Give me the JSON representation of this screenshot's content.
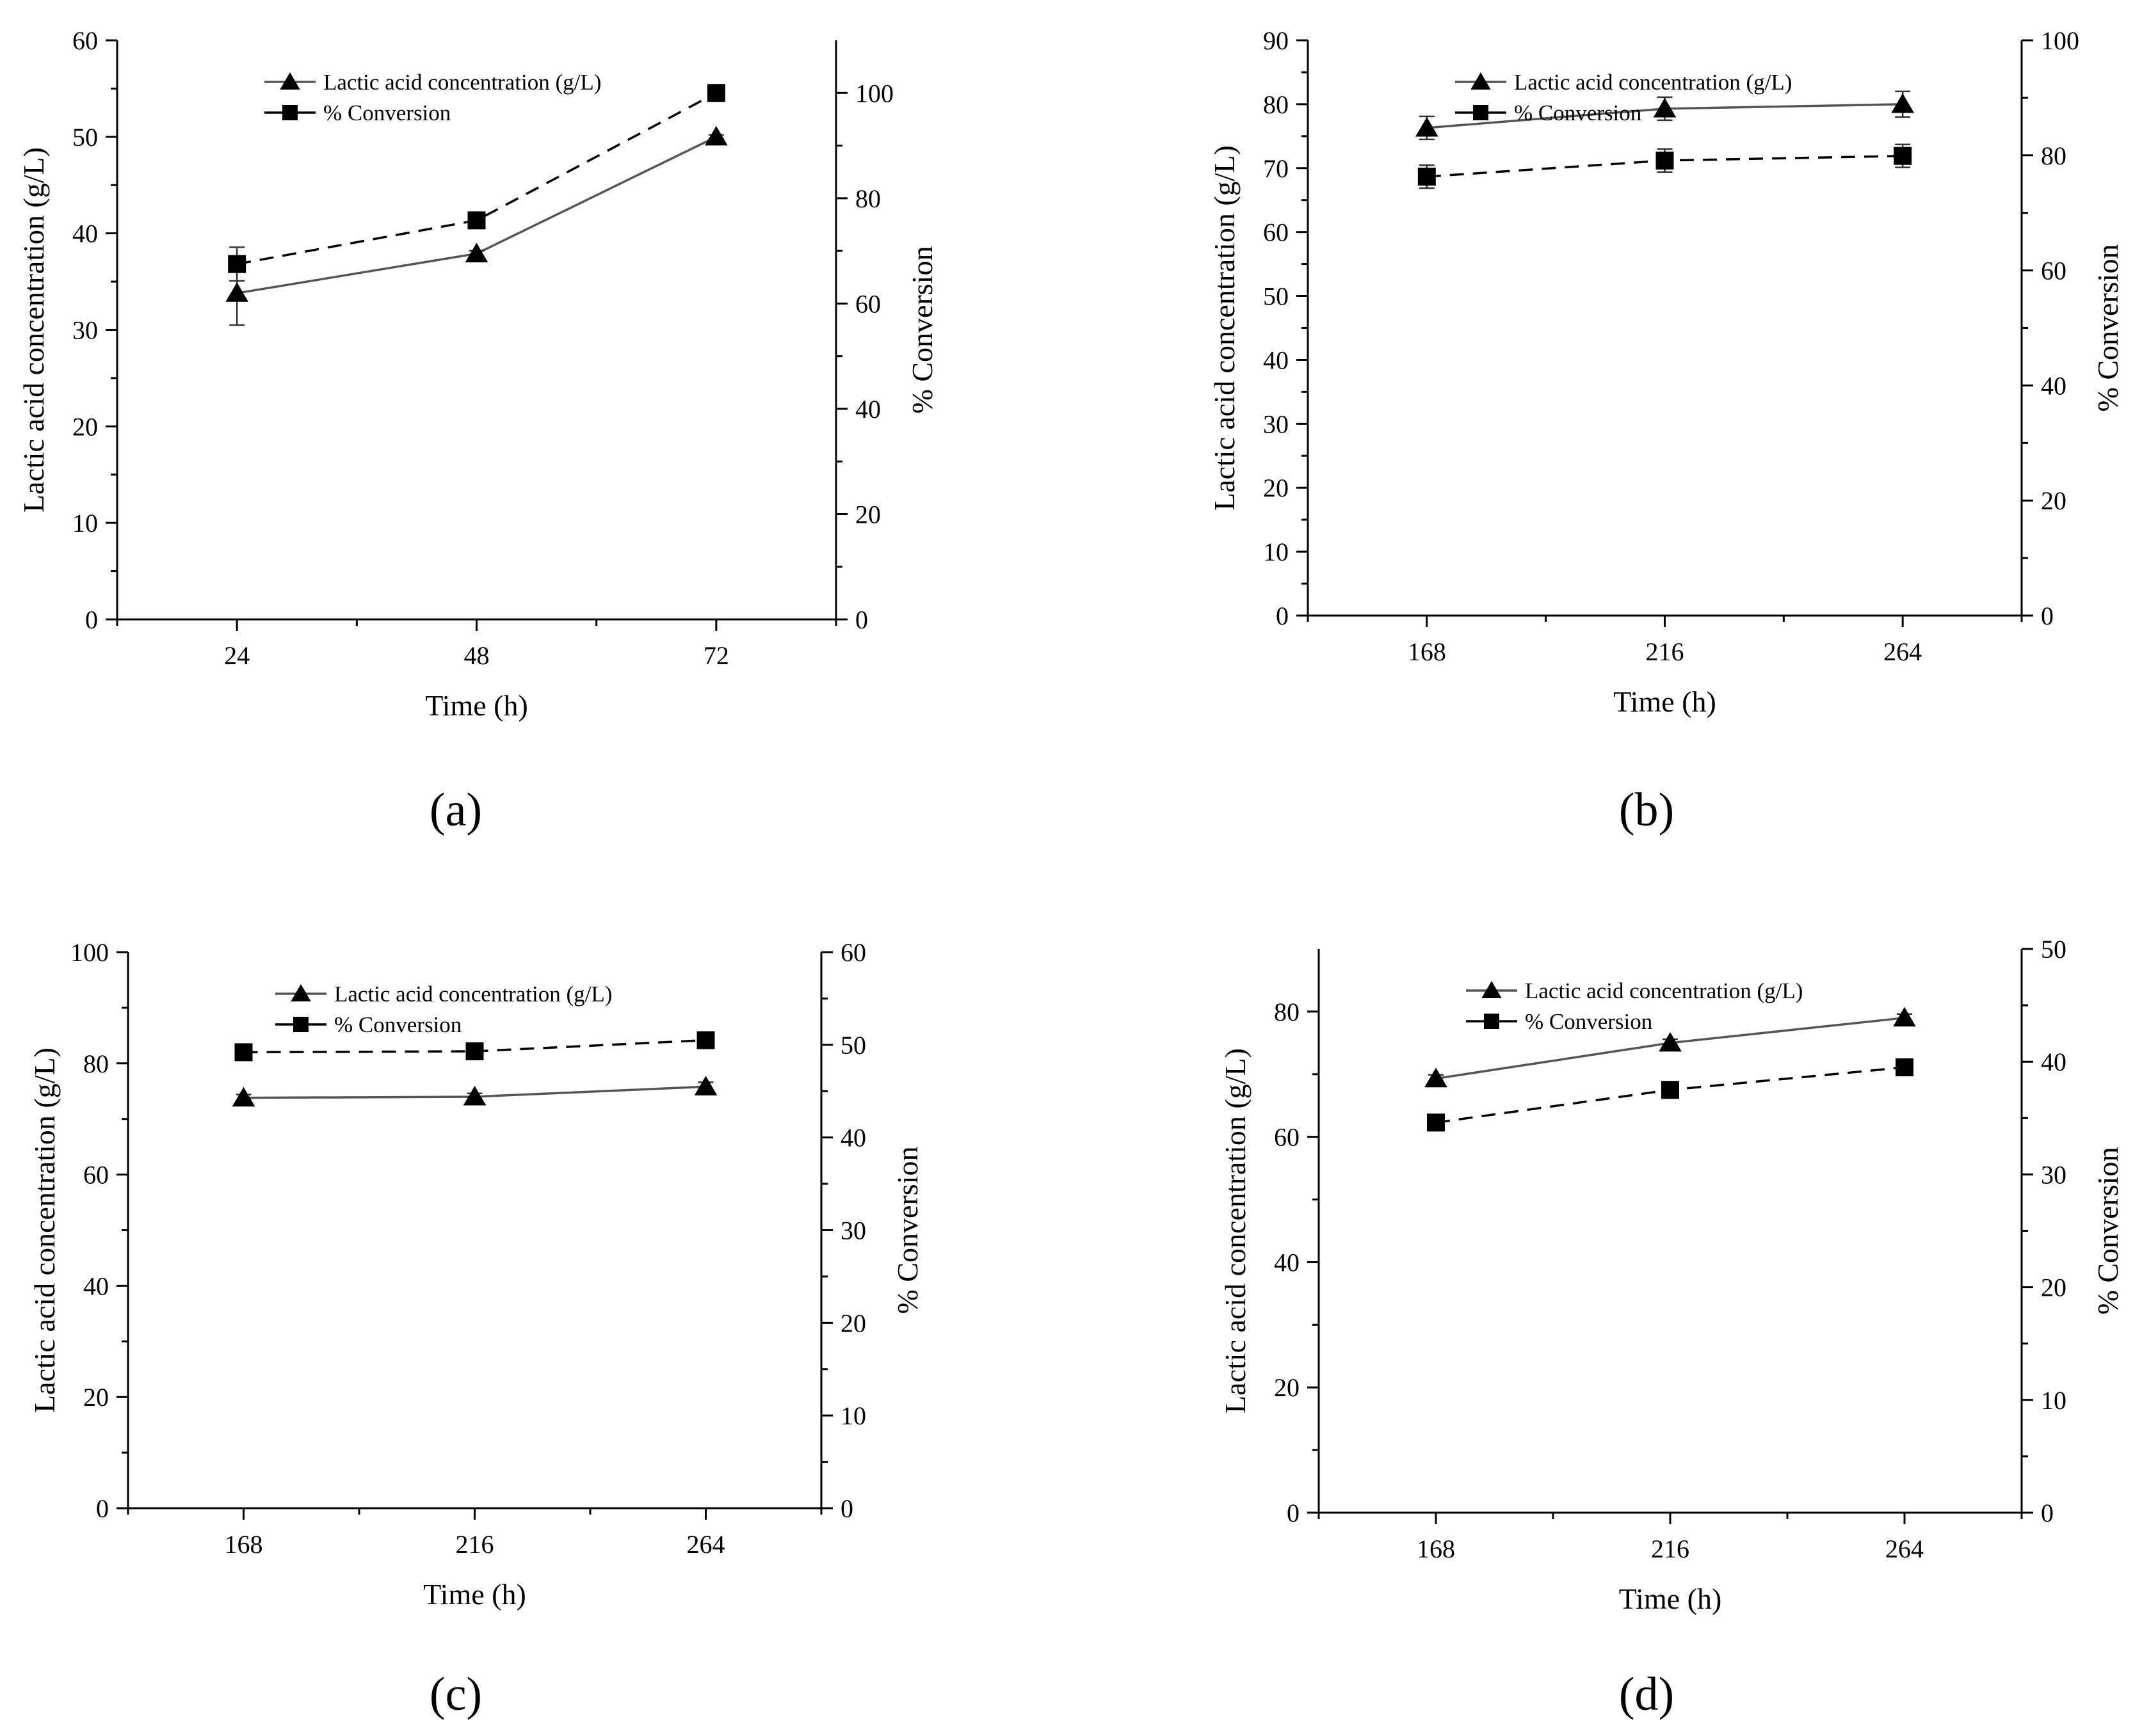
{
  "figure": {
    "panel_labels": [
      "(a)",
      "(b)",
      "(c)",
      "(d)"
    ]
  },
  "colors": {
    "axis": "#000000",
    "lactic_line": "#555555",
    "conversion_line": "#000000",
    "marker": "#000000",
    "background": "#ffffff"
  },
  "chart_data": [
    {
      "type": "line",
      "panel": "(a)",
      "xlabel": "Time (h)",
      "ylabel": "Lactic acid concentration (g/L)",
      "y2label": "% Conversion",
      "x": [
        24,
        48,
        72
      ],
      "xticks": [
        "24",
        "48",
        "72"
      ],
      "xlim": [
        12,
        84
      ],
      "ylim": [
        0,
        60
      ],
      "yticks": [
        0,
        10,
        20,
        30,
        40,
        50,
        60
      ],
      "y2lim": [
        0,
        110
      ],
      "y2ticks": [
        0,
        20,
        40,
        60,
        80,
        100
      ],
      "legend": {
        "placement": "top-left",
        "entries": [
          "Lactic acid concentration (g/L)",
          "% Conversion"
        ]
      },
      "series": [
        {
          "name": "Lactic acid concentration (g/L)",
          "axis": "left",
          "marker": "triangle",
          "line": "solid",
          "values": [
            33.8,
            37.9,
            50.0
          ],
          "errors": [
            3.3,
            0.3,
            0.2
          ]
        },
        {
          "name": "% Conversion",
          "axis": "right",
          "marker": "square",
          "line": "dashed",
          "values": [
            67.5,
            75.8,
            100.0
          ],
          "errors": [
            3.2,
            0.5,
            0.5
          ]
        }
      ]
    },
    {
      "type": "line",
      "panel": "(b)",
      "xlabel": "Time (h)",
      "ylabel": "Lactic acid concentration (g/L)",
      "y2label": "% Conversion",
      "x": [
        168,
        216,
        264
      ],
      "xticks": [
        "168",
        "216",
        "264"
      ],
      "xlim": [
        144,
        288
      ],
      "ylim": [
        0,
        90
      ],
      "yticks": [
        0,
        10,
        20,
        30,
        40,
        50,
        60,
        70,
        80,
        90
      ],
      "y2lim": [
        0,
        100
      ],
      "y2ticks": [
        0,
        20,
        40,
        60,
        80,
        100
      ],
      "legend": {
        "placement": "top-left",
        "entries": [
          "Lactic acid concentration (g/L)",
          "% Conversion"
        ]
      },
      "series": [
        {
          "name": "Lactic acid concentration (g/L)",
          "axis": "left",
          "marker": "triangle",
          "line": "solid",
          "values": [
            76.3,
            79.3,
            80.0
          ],
          "errors": [
            1.8,
            1.8,
            2.0
          ]
        },
        {
          "name": "% Conversion",
          "axis": "right",
          "marker": "square",
          "line": "dashed",
          "values": [
            76.3,
            79.1,
            79.9
          ],
          "errors": [
            2.0,
            2.0,
            2.0
          ]
        }
      ]
    },
    {
      "type": "line",
      "panel": "(c)",
      "xlabel": "Time (h)",
      "ylabel": "Lactic acid concentration (g/L)",
      "y2label": "% Conversion",
      "x": [
        168,
        216,
        264
      ],
      "xticks": [
        "168",
        "216",
        "264"
      ],
      "xlim": [
        144,
        288
      ],
      "ylim": [
        0,
        100
      ],
      "yticks": [
        0,
        20,
        40,
        60,
        80,
        100
      ],
      "y2lim": [
        0,
        60
      ],
      "y2ticks": [
        0,
        10,
        20,
        30,
        40,
        50,
        60
      ],
      "legend": {
        "placement": "top-left",
        "entries": [
          "Lactic acid concentration (g/L)",
          "% Conversion"
        ]
      },
      "series": [
        {
          "name": "Lactic acid concentration (g/L)",
          "axis": "left",
          "marker": "triangle",
          "line": "solid",
          "values": [
            73.8,
            74.0,
            75.8
          ],
          "errors": [
            0.6,
            0.6,
            0.8
          ]
        },
        {
          "name": "% Conversion",
          "axis": "right",
          "marker": "square",
          "line": "dashed",
          "values": [
            49.2,
            49.3,
            50.5
          ],
          "errors": [
            0.5,
            0.5,
            0.8
          ]
        }
      ]
    },
    {
      "type": "line",
      "panel": "(d)",
      "xlabel": "Time (h)",
      "ylabel": "Lactic acid concentration (g/L)",
      "y2label": "% Conversion",
      "x": [
        168,
        216,
        264
      ],
      "xticks": [
        "168",
        "216",
        "264"
      ],
      "xlim": [
        144,
        288
      ],
      "ylim": [
        0,
        90
      ],
      "yticks": [
        0,
        20,
        40,
        60,
        80
      ],
      "y2lim": [
        0,
        50
      ],
      "y2ticks": [
        0,
        10,
        20,
        30,
        40,
        50
      ],
      "legend": {
        "placement": "top-left",
        "entries": [
          "Lactic acid concentration (g/L)",
          "% Conversion"
        ]
      },
      "series": [
        {
          "name": "Lactic acid concentration (g/L)",
          "axis": "left",
          "marker": "triangle",
          "line": "solid",
          "values": [
            69.3,
            75.0,
            79.0
          ],
          "errors": [
            0.6,
            0.6,
            0.6
          ]
        },
        {
          "name": "% Conversion",
          "axis": "right",
          "marker": "square",
          "line": "dashed",
          "values": [
            34.6,
            37.5,
            39.5
          ],
          "errors": [
            0.4,
            0.4,
            0.4
          ]
        }
      ]
    }
  ]
}
